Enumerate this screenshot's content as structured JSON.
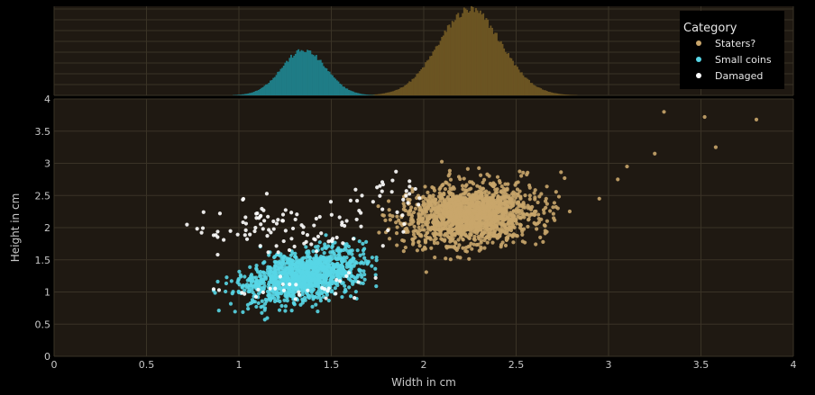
{
  "chart_data": {
    "type": "scatter",
    "xlabel": "Width in cm",
    "ylabel": "Height in cm",
    "xlim": [
      0,
      4
    ],
    "ylim": [
      0,
      4
    ],
    "x_ticks": [
      "0",
      "0.5",
      "1",
      "1.5",
      "2",
      "2.5",
      "3",
      "3.5",
      "4"
    ],
    "y_ticks": [
      "0",
      "0.5",
      "1",
      "1.5",
      "2",
      "2.5",
      "3",
      "3.5",
      "4"
    ],
    "grid": true,
    "marginal": "histogram of width (top)",
    "legend_title": "Category",
    "legend_position": "top-right",
    "series": [
      {
        "name": "Staters?",
        "color": "#c9a66b",
        "hist_color": "#6b5422",
        "x_mean": 2.25,
        "x_sd": 0.17,
        "y_mean": 2.2,
        "y_sd": 0.23,
        "x_range": [
          1.75,
          2.8
        ],
        "notable_points": [
          [
            3.3,
            3.8
          ],
          [
            3.52,
            3.72
          ],
          [
            3.8,
            3.68
          ],
          [
            3.58,
            3.25
          ],
          [
            3.25,
            3.15
          ],
          [
            3.1,
            2.95
          ],
          [
            3.05,
            2.75
          ],
          [
            2.95,
            2.45
          ]
        ]
      },
      {
        "name": "Small coins",
        "color": "#58d6e6",
        "hist_color": "#1f7c86",
        "x_mean": 1.35,
        "x_sd": 0.12,
        "y_mean": 1.25,
        "y_sd": 0.18,
        "x_range": [
          0.7,
          1.75
        ]
      },
      {
        "name": "Damaged",
        "color": "#ffffff",
        "x_range": [
          0.7,
          2.0
        ],
        "y_range": [
          0.8,
          3.0
        ]
      }
    ]
  }
}
